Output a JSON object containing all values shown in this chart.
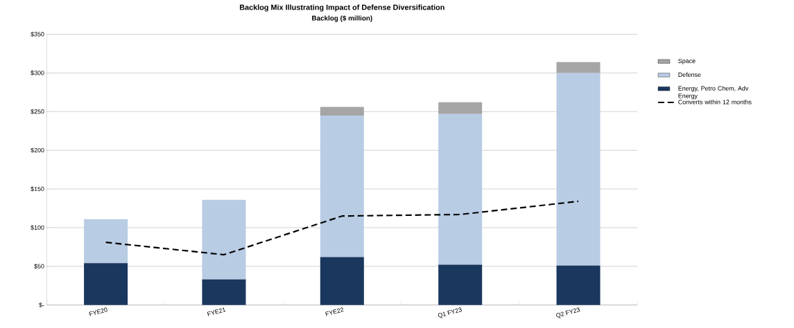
{
  "chart_data": {
    "type": "bar",
    "stacked": true,
    "title": "Backlog Mix Illustrating Impact of Defense Diversification",
    "subtitle": "Backlog ($ million)",
    "categories": [
      "FYE20",
      "FYE21",
      "FYE22",
      "Q1 FY23",
      "Q2 FY23"
    ],
    "series": [
      {
        "name": "Energy, Petro Chem, Adv Energy",
        "color": "#1a375e",
        "values": [
          54,
          33,
          62,
          52,
          51
        ]
      },
      {
        "name": "Defense",
        "color": "#b8cce4",
        "values": [
          57,
          103,
          183,
          195,
          249
        ]
      },
      {
        "name": "Space",
        "color": "#a5a5a5",
        "values": [
          null,
          null,
          11,
          15,
          14
        ]
      },
      {
        "name": "Converts within 12 months",
        "type": "line",
        "color": "#000000",
        "line_style": "dashed",
        "values": [
          81,
          65,
          115,
          117,
          134
        ]
      }
    ],
    "ylim": [
      0,
      350
    ],
    "yticks": [
      {
        "value": 0,
        "label": "$-"
      },
      {
        "value": 50,
        "label": "$50"
      },
      {
        "value": 100,
        "label": "$100"
      },
      {
        "value": 150,
        "label": "$150"
      },
      {
        "value": 200,
        "label": "$200"
      },
      {
        "value": 250,
        "label": "$250"
      },
      {
        "value": 300,
        "label": "$300"
      },
      {
        "value": 350,
        "label": "$350"
      }
    ],
    "grid": "y",
    "legend": "right"
  }
}
